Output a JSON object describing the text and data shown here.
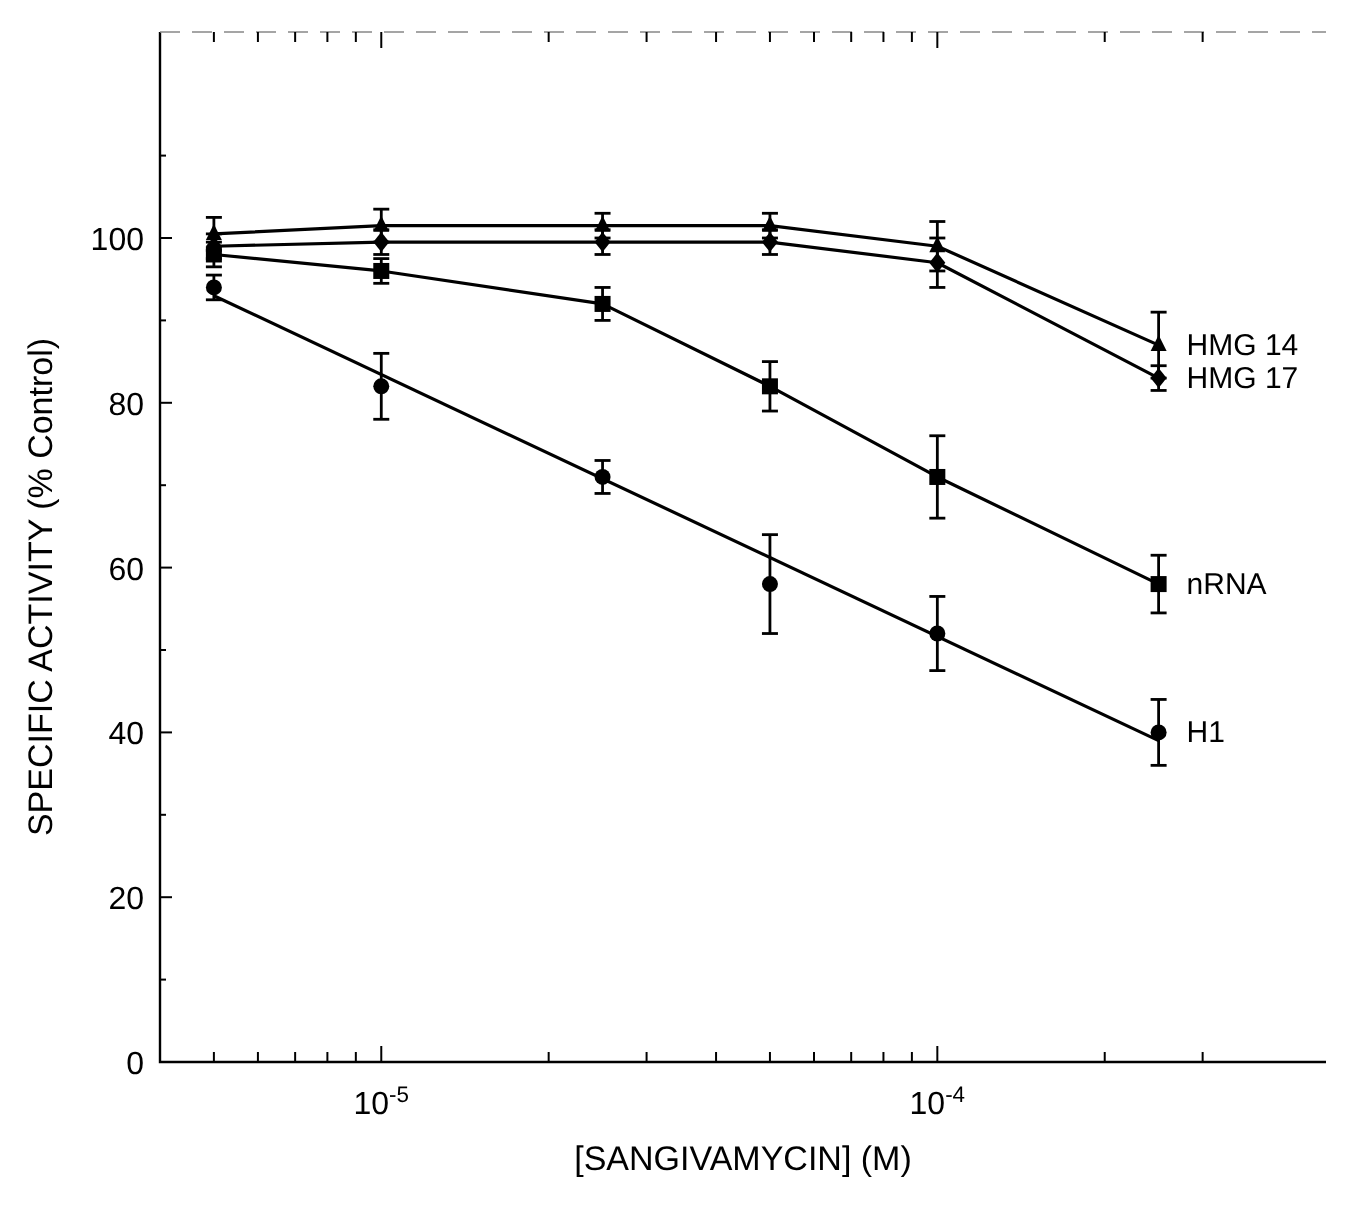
{
  "chart_data": {
    "type": "line",
    "xlabel": "[SANGIVAMYCIN] (M)",
    "ylabel": "SPECIFIC ACTIVITY (% Control)",
    "log": "x",
    "grid": false,
    "x": [
      5e-06,
      1e-05,
      2.5e-05,
      5e-05,
      0.0001,
      0.00025
    ],
    "xlim": [
      4e-06,
      0.0005
    ],
    "xticks": [
      {
        "value": 5e-06,
        "label": null
      },
      {
        "value": 6e-06,
        "label": null
      },
      {
        "value": 7e-06,
        "label": null
      },
      {
        "value": 8e-06,
        "label": null
      },
      {
        "value": 9e-06,
        "label": null
      },
      {
        "value": 1e-05,
        "label": "10$^{-5}$"
      },
      {
        "value": 2e-05,
        "label": null
      },
      {
        "value": 3e-05,
        "label": null
      },
      {
        "value": 4e-05,
        "label": null
      },
      {
        "value": 5e-05,
        "label": null
      },
      {
        "value": 6e-05,
        "label": null
      },
      {
        "value": 7e-05,
        "label": null
      },
      {
        "value": 8e-05,
        "label": null
      },
      {
        "value": 9e-05,
        "label": null
      },
      {
        "value": 0.0001,
        "label": "10$^{-4}$"
      },
      {
        "value": 0.0002,
        "label": null
      },
      {
        "value": 0.0003,
        "label": null
      }
    ],
    "ylim": [
      0,
      125
    ],
    "yticks": [
      0,
      {
        "value": 10,
        "label": null
      },
      20,
      {
        "value": 30,
        "label": null
      },
      40,
      {
        "value": 50,
        "label": null
      },
      60,
      {
        "value": 70,
        "label": null
      },
      80,
      {
        "value": 90,
        "label": null
      },
      100,
      {
        "value": 110,
        "label": null
      }
    ],
    "series": [
      {
        "name": "HMG 14",
        "color": "#000000",
        "marker": "triangle",
        "values": [
          100.5,
          101.5,
          101.5,
          101.5,
          99,
          87
        ],
        "errors": [
          2,
          2,
          1.5,
          1.5,
          3,
          4
        ]
      },
      {
        "name": "HMG 17",
        "color": "#000000",
        "marker": "diamond",
        "values": [
          99,
          99.5,
          99.5,
          99.5,
          97,
          83
        ],
        "errors": [
          1.5,
          1.5,
          1.5,
          1.5,
          3,
          1.5
        ]
      },
      {
        "name": "nRNA",
        "color": "#000000",
        "marker": "square",
        "values": [
          98,
          96,
          92,
          82,
          71,
          58
        ],
        "errors": [
          1.5,
          1.5,
          2,
          3,
          5,
          3.5
        ]
      },
      {
        "name": "H1",
        "color": "#000000",
        "type": "scatter",
        "marker": "circle",
        "values": [
          94,
          82,
          71,
          58,
          52,
          40
        ],
        "errors": [
          1.5,
          4,
          2,
          6,
          4.5,
          4
        ]
      },
      {
        "color": "#000000",
        "type": "line",
        "marker": "none",
        "x": [
          5e-06,
          0.00025
        ],
        "values": [
          93,
          39
        ]
      }
    ]
  }
}
